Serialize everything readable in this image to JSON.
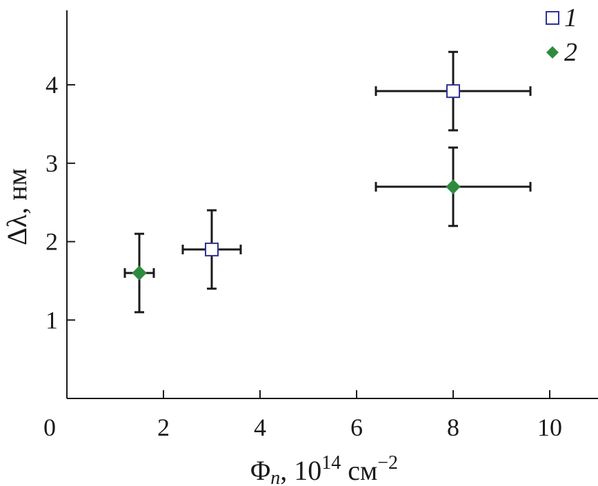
{
  "chart_data": {
    "type": "scatter",
    "x_axis": {
      "label_symbol": "Φ",
      "label_sub": "n",
      "label_rest": ", 10",
      "label_sup": "14",
      "label_unit": " см",
      "label_unit_sup": "−2",
      "range": [
        0,
        11
      ],
      "ticks": [
        0,
        2,
        4,
        6,
        8,
        10
      ],
      "tick_labels": [
        "0",
        "2",
        "4",
        "6",
        "8",
        "10"
      ]
    },
    "y_axis": {
      "label": "Δλ, нм",
      "range": [
        0,
        4.95
      ],
      "ticks": [
        1,
        2,
        3,
        4
      ],
      "tick_labels": [
        "1",
        "2",
        "3",
        "4"
      ]
    },
    "series": [
      {
        "name": "1",
        "marker": "open-square",
        "color": "#2e3192",
        "points": [
          {
            "x": 3.0,
            "y": 1.9,
            "x_err": 0.6,
            "y_err": 0.5
          },
          {
            "x": 8.0,
            "y": 3.92,
            "x_err": 1.6,
            "y_err": 0.5
          }
        ]
      },
      {
        "name": "2",
        "marker": "filled-diamond",
        "color": "#2e8b3e",
        "points": [
          {
            "x": 1.5,
            "y": 1.6,
            "x_err": 0.3,
            "y_err": 0.5
          },
          {
            "x": 8.0,
            "y": 2.7,
            "x_err": 1.6,
            "y_err": 0.5
          }
        ]
      }
    ],
    "legend": {
      "placement": "top-right",
      "entries": [
        "1",
        "2"
      ]
    },
    "grid": false
  }
}
